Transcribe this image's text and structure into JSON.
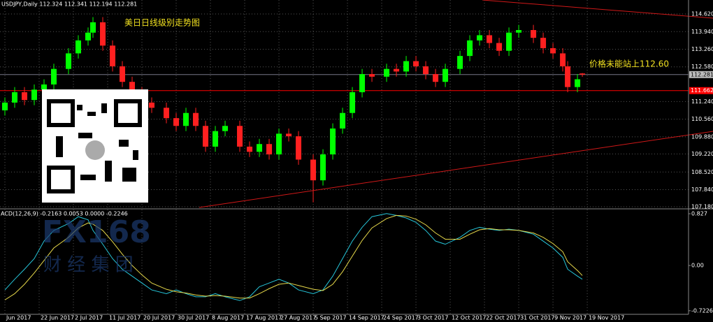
{
  "chart_data": [
    {
      "type": "candlestick",
      "title": "USDJPY,Daily 112.324 112.341 112.194 112.281",
      "annotations": [
        "美日日线级别走势图",
        "价格未能站上112.60"
      ],
      "watermark": "FX168",
      "watermark_sub": "财 经 集 团",
      "up_color": "#00ff00",
      "down_color": "#ff2020",
      "grid": true,
      "x": [
        1,
        3,
        5,
        7,
        9,
        11,
        14,
        16,
        18,
        19,
        21,
        23,
        25,
        27,
        29,
        31,
        34,
        36,
        38,
        40,
        42,
        44,
        46,
        49,
        51,
        53,
        55,
        57,
        59,
        61,
        64,
        66,
        68,
        70,
        72,
        74,
        76,
        79,
        81,
        83,
        85,
        87,
        89,
        91,
        94,
        96,
        98,
        100,
        102,
        104,
        106,
        109,
        111,
        113,
        115,
        116,
        118,
        119
      ],
      "open": [
        110.9,
        111.2,
        111.6,
        111.3,
        111.7,
        111.9,
        112.5,
        113.1,
        113.6,
        113.9,
        114.3,
        113.4,
        112.6,
        112.0,
        111.6,
        111.2,
        111.0,
        110.6,
        110.3,
        110.8,
        110.3,
        109.5,
        110.1,
        110.3,
        109.5,
        109.3,
        109.6,
        109.2,
        110.0,
        109.9,
        109.0,
        108.2,
        109.2,
        110.2,
        110.8,
        111.6,
        112.3,
        112.2,
        112.5,
        112.4,
        112.8,
        112.6,
        112.3,
        112.0,
        112.5,
        113.0,
        113.6,
        113.8,
        113.5,
        113.2,
        113.9,
        114.0,
        113.7,
        113.3,
        113.1,
        112.6,
        111.8,
        112.324
      ],
      "high": [
        111.4,
        111.8,
        111.8,
        111.9,
        112.1,
        112.7,
        113.3,
        113.8,
        114.1,
        114.5,
        114.5,
        113.6,
        112.8,
        112.2,
        111.8,
        111.4,
        111.2,
        110.8,
        111.0,
        111.0,
        110.5,
        110.3,
        110.5,
        110.5,
        109.7,
        109.8,
        109.8,
        110.2,
        110.2,
        110.1,
        109.2,
        109.4,
        110.4,
        111.0,
        111.8,
        112.5,
        112.5,
        112.7,
        112.7,
        113.0,
        113.0,
        112.8,
        112.5,
        112.7,
        113.2,
        113.8,
        114.0,
        114.0,
        113.7,
        114.1,
        114.2,
        114.2,
        113.9,
        113.5,
        113.3,
        112.8,
        112.3,
        112.341
      ],
      "low": [
        110.7,
        111.0,
        111.1,
        111.1,
        111.5,
        111.7,
        112.3,
        112.9,
        113.4,
        113.7,
        113.2,
        112.4,
        111.8,
        111.4,
        111.0,
        110.8,
        110.4,
        110.1,
        110.1,
        110.1,
        109.3,
        109.3,
        109.9,
        109.3,
        109.1,
        109.1,
        109.0,
        109.0,
        109.7,
        108.8,
        107.35,
        108.0,
        109.0,
        110.0,
        110.6,
        111.4,
        112.0,
        112.0,
        112.2,
        112.2,
        112.4,
        112.1,
        111.8,
        111.8,
        112.3,
        112.8,
        113.4,
        113.3,
        113.0,
        113.0,
        113.7,
        113.5,
        113.1,
        112.9,
        112.4,
        111.6,
        111.6,
        112.194
      ],
      "close": [
        111.2,
        111.6,
        111.3,
        111.7,
        111.9,
        112.5,
        113.1,
        113.6,
        113.9,
        114.3,
        113.4,
        112.6,
        112.0,
        111.6,
        111.2,
        111.0,
        110.6,
        110.3,
        110.8,
        110.3,
        109.5,
        110.1,
        110.3,
        109.5,
        109.3,
        109.6,
        109.2,
        110.0,
        109.9,
        109.0,
        108.2,
        109.2,
        110.2,
        110.8,
        111.6,
        112.3,
        112.2,
        112.5,
        112.4,
        112.8,
        112.6,
        112.3,
        112.0,
        112.5,
        113.0,
        113.6,
        113.8,
        113.5,
        113.2,
        113.9,
        114.0,
        113.7,
        113.3,
        113.1,
        112.6,
        111.8,
        112.1,
        112.281
      ],
      "xlim": [
        0,
        140.7
      ],
      "xticks": [
        {
          "value": 1,
          "label": "Jun 2017"
        },
        {
          "value": 8,
          "label": "22 Jun 2017"
        },
        {
          "value": 15,
          "label": "2 Jul 2017"
        },
        {
          "value": 22,
          "label": "11 Jul 2017"
        },
        {
          "value": 29,
          "label": "20 Jul 2017"
        },
        {
          "value": 36,
          "label": "30 Jul 2017"
        },
        {
          "value": 43,
          "label": "8 Aug 2017"
        },
        {
          "value": 50,
          "label": "17 Aug 2017"
        },
        {
          "value": 57,
          "label": "27 Aug 2017"
        },
        {
          "value": 64,
          "label": "5 Sep 2017"
        },
        {
          "value": 71,
          "label": "14 Sep 2017"
        },
        {
          "value": 78,
          "label": "24 Sep 2017"
        },
        {
          "value": 85,
          "label": "3 Oct 2017"
        },
        {
          "value": 92,
          "label": "12 Oct 2017"
        },
        {
          "value": 99,
          "label": "22 Oct 2017"
        },
        {
          "value": 106,
          "label": "31 Oct 2017"
        },
        {
          "value": 113,
          "label": "9 Nov 2017"
        },
        {
          "value": 120,
          "label": "19 Nov 2017"
        }
      ],
      "ylim": [
        107.126,
        115.16
      ],
      "yticks": [
        {
          "value": 114.62,
          "label": "114.620"
        },
        {
          "value": 113.94,
          "label": "113.940"
        },
        {
          "value": 113.26,
          "label": "113.260"
        },
        {
          "value": 112.58,
          "label": "112.580"
        },
        {
          "value": 111.24,
          "label": "111.240"
        },
        {
          "value": 110.56,
          "label": "110.560"
        },
        {
          "value": 109.88,
          "label": "109.880"
        },
        {
          "value": 109.22,
          "label": "109.220"
        },
        {
          "value": 108.52,
          "label": "108.520"
        },
        {
          "value": 107.84,
          "label": "107.840"
        },
        {
          "value": 107.18,
          "label": "107.180"
        }
      ],
      "current_price": {
        "value": 112.281,
        "label": "112.281"
      },
      "level": {
        "value": 111.662,
        "label": "111.662",
        "color": "#ff0000"
      }
    },
    {
      "type": "line",
      "title": "ACD(12,26,9) -0.2163 0.0053 0.0000 -0.2246",
      "x": [
        1,
        3,
        5,
        7,
        9,
        11,
        14,
        16,
        18,
        19,
        21,
        23,
        25,
        27,
        29,
        31,
        34,
        36,
        38,
        40,
        42,
        44,
        46,
        49,
        51,
        53,
        55,
        57,
        59,
        61,
        64,
        66,
        68,
        70,
        72,
        74,
        76,
        79,
        81,
        83,
        85,
        87,
        89,
        91,
        94,
        96,
        98,
        100,
        102,
        104,
        106,
        109,
        111,
        113,
        115,
        116,
        118,
        119
      ],
      "series": [
        {
          "color": "#26c6da",
          "values": [
            -0.39,
            -0.22,
            -0.06,
            0.11,
            0.39,
            0.56,
            0.67,
            0.78,
            0.73,
            0.56,
            0.34,
            0.11,
            -0.06,
            -0.17,
            -0.28,
            -0.39,
            -0.45,
            -0.39,
            -0.45,
            -0.5,
            -0.5,
            -0.45,
            -0.5,
            -0.56,
            -0.5,
            -0.34,
            -0.28,
            -0.22,
            -0.28,
            -0.39,
            -0.45,
            -0.39,
            -0.17,
            0.11,
            0.39,
            0.61,
            0.78,
            0.83,
            0.8,
            0.76,
            0.69,
            0.56,
            0.39,
            0.34,
            0.45,
            0.56,
            0.61,
            0.58,
            0.56,
            0.58,
            0.56,
            0.5,
            0.39,
            0.28,
            0.13,
            -0.06,
            -0.17,
            -0.22
          ]
        },
        {
          "color": "#e6d84a",
          "values": [
            -0.55,
            -0.45,
            -0.3,
            -0.12,
            0.08,
            0.28,
            0.45,
            0.6,
            0.68,
            0.66,
            0.56,
            0.38,
            0.18,
            0.0,
            -0.15,
            -0.28,
            -0.38,
            -0.42,
            -0.44,
            -0.47,
            -0.49,
            -0.48,
            -0.49,
            -0.52,
            -0.52,
            -0.45,
            -0.37,
            -0.3,
            -0.28,
            -0.32,
            -0.38,
            -0.4,
            -0.3,
            -0.1,
            0.15,
            0.4,
            0.6,
            0.75,
            0.8,
            0.79,
            0.74,
            0.65,
            0.52,
            0.42,
            0.42,
            0.5,
            0.57,
            0.59,
            0.57,
            0.57,
            0.56,
            0.52,
            0.45,
            0.35,
            0.22,
            0.06,
            -0.08,
            -0.16
          ]
        }
      ],
      "xlim": [
        0,
        140.7
      ],
      "ylim": [
        -0.78,
        0.894
      ],
      "yticks": [
        0.827,
        {
          "value": 0,
          "label": "0.00"
        },
        -0.7226
      ]
    }
  ]
}
